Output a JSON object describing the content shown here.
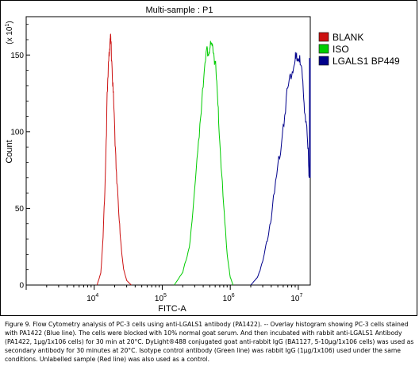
{
  "chart_data": {
    "type": "line",
    "title": "Multi-sample : P1",
    "xlabel": "FITC-A",
    "ylabel": "Count",
    "y_multiplier": "(x 10^1)",
    "x_scale": "log",
    "xlim": [
      1000,
      15000000
    ],
    "ylim": [
      0,
      175
    ],
    "x_ticks": [
      {
        "value": 10000,
        "base": "10",
        "exp": "4"
      },
      {
        "value": 100000,
        "base": "10",
        "exp": "5"
      },
      {
        "value": 1000000,
        "base": "10",
        "exp": "6"
      },
      {
        "value": 10000000,
        "base": "10",
        "exp": "7"
      }
    ],
    "y_ticks": [
      "0",
      "50",
      "100",
      "150"
    ],
    "y_tick_values": [
      0,
      50,
      100,
      150
    ],
    "legend_position": "top-right",
    "series": [
      {
        "name": "BLANK",
        "color": "#cc1111",
        "x": [
          11000,
          12500,
          13500,
          14500,
          15500,
          16500,
          17000,
          17500,
          18000,
          19000,
          20000,
          21500,
          23000,
          25000,
          27000,
          30000,
          35000
        ],
        "y": [
          0,
          8,
          30,
          70,
          120,
          150,
          160,
          158,
          150,
          125,
          100,
          70,
          45,
          25,
          10,
          3,
          0
        ]
      },
      {
        "name": "ISO",
        "color": "#00cc00",
        "x": [
          150000,
          200000,
          250000,
          300000,
          350000,
          400000,
          450000,
          480000,
          520000,
          560000,
          600000,
          650000,
          700000,
          800000,
          900000,
          1000000,
          1100000
        ],
        "y": [
          0,
          8,
          25,
          60,
          100,
          135,
          150,
          155,
          153,
          155,
          145,
          120,
          95,
          50,
          20,
          5,
          0
        ]
      },
      {
        "name": "LGALS1 BP449",
        "color": "#00008b",
        "x": [
          2000000,
          2500000,
          3000000,
          3500000,
          4000000,
          5000000,
          6000000,
          7000000,
          8000000,
          9000000,
          9500000,
          10000000,
          11000000,
          12000000,
          13000000,
          14000000,
          14500000
        ],
        "y": [
          0,
          5,
          15,
          30,
          45,
          75,
          105,
          128,
          140,
          148,
          145,
          150,
          140,
          125,
          105,
          85,
          70
        ]
      }
    ]
  },
  "caption": "Figure 9. Flow Cytometry analysis of PC-3 cells using anti-LGALS1 antibody (PA1422). -- Overlay histogram showing PC-3 cells stained with PA1422 (Blue line). The cells were blocked with 10% normal goat serum. And then incubated with rabbit anti-LGALS1 Antibody (PA1422, 1µg/1x106 cells) for 30 min at 20°C. DyLight®488 conjugated goat anti-rabbit IgG (BA1127, 5-10µg/1x106 cells) was used as secondary antibody for 30 minutes at 20°C. Isotype control antibody (Green line) was rabbit IgG (1µg/1x106) used under the same conditions. Unlabelled sample (Red line) was also used as a control."
}
